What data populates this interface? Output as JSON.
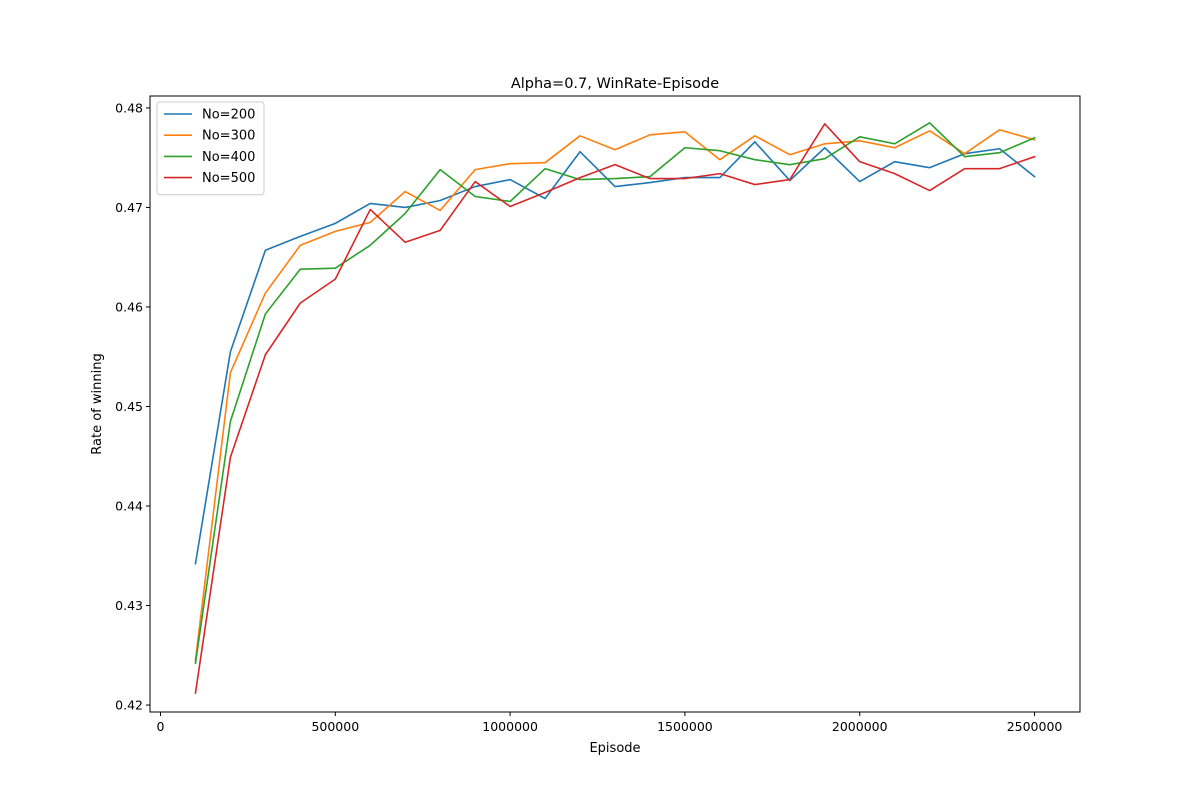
{
  "chart_data": {
    "type": "line",
    "title": "Alpha=0.7, WinRate-Episode",
    "xlabel": "Episode",
    "ylabel": "Rate of winning",
    "xlim": [
      -30000,
      2630000
    ],
    "ylim": [
      0.4193,
      0.4812
    ],
    "xticks": [
      0,
      500000,
      1000000,
      1500000,
      2000000,
      2500000
    ],
    "yticks": [
      0.42,
      0.43,
      0.44,
      0.45,
      0.46,
      0.47,
      0.48
    ],
    "grid": false,
    "legend_position": "top-left",
    "x": [
      100000,
      200000,
      300000,
      400000,
      500000,
      600000,
      700000,
      800000,
      900000,
      1000000,
      1100000,
      1200000,
      1300000,
      1400000,
      1500000,
      1600000,
      1700000,
      1800000,
      1900000,
      2000000,
      2100000,
      2200000,
      2300000,
      2400000,
      2500000
    ],
    "series": [
      {
        "name": "No=200",
        "color": "#1f77b4",
        "values": [
          0.4342,
          0.4555,
          0.4657,
          0.4671,
          0.4684,
          0.4704,
          0.47,
          0.4707,
          0.4721,
          0.4728,
          0.4709,
          0.4756,
          0.4721,
          0.4725,
          0.473,
          0.473,
          0.4766,
          0.4727,
          0.476,
          0.4726,
          0.4746,
          0.474,
          0.4754,
          0.4759,
          0.4731
        ]
      },
      {
        "name": "No=300",
        "color": "#ff7f0e",
        "values": [
          0.4245,
          0.4534,
          0.4614,
          0.4662,
          0.4676,
          0.4685,
          0.4716,
          0.4697,
          0.4738,
          0.4744,
          0.4745,
          0.4772,
          0.4758,
          0.4773,
          0.4776,
          0.4748,
          0.4772,
          0.4753,
          0.4764,
          0.4767,
          0.476,
          0.4777,
          0.4754,
          0.4778,
          0.4768
        ]
      },
      {
        "name": "No=400",
        "color": "#2ca02c",
        "values": [
          0.4242,
          0.4485,
          0.4593,
          0.4638,
          0.4639,
          0.4662,
          0.4694,
          0.4738,
          0.4711,
          0.4706,
          0.4739,
          0.4728,
          0.4729,
          0.4731,
          0.476,
          0.4757,
          0.4748,
          0.4743,
          0.4749,
          0.4771,
          0.4764,
          0.4785,
          0.4751,
          0.4755,
          0.477
        ]
      },
      {
        "name": "No=500",
        "color": "#d62728",
        "values": [
          0.4212,
          0.4449,
          0.4552,
          0.4604,
          0.4628,
          0.4698,
          0.4665,
          0.4677,
          0.4726,
          0.4701,
          0.4715,
          0.473,
          0.4743,
          0.4729,
          0.4729,
          0.4734,
          0.4723,
          0.4728,
          0.4784,
          0.4746,
          0.4734,
          0.4717,
          0.4739,
          0.4739,
          0.4751
        ]
      }
    ]
  }
}
